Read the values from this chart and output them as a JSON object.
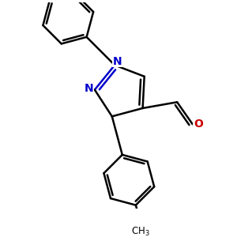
{
  "bg_color": "#ffffff",
  "bond_color": "#000000",
  "N_color": "#0000cc",
  "O_color": "#cc0000",
  "bond_width": 1.8,
  "figsize": [
    3.0,
    3.0
  ],
  "dpi": 100,
  "xlim": [
    -2.5,
    3.5
  ],
  "ylim": [
    -3.5,
    3.0
  ]
}
